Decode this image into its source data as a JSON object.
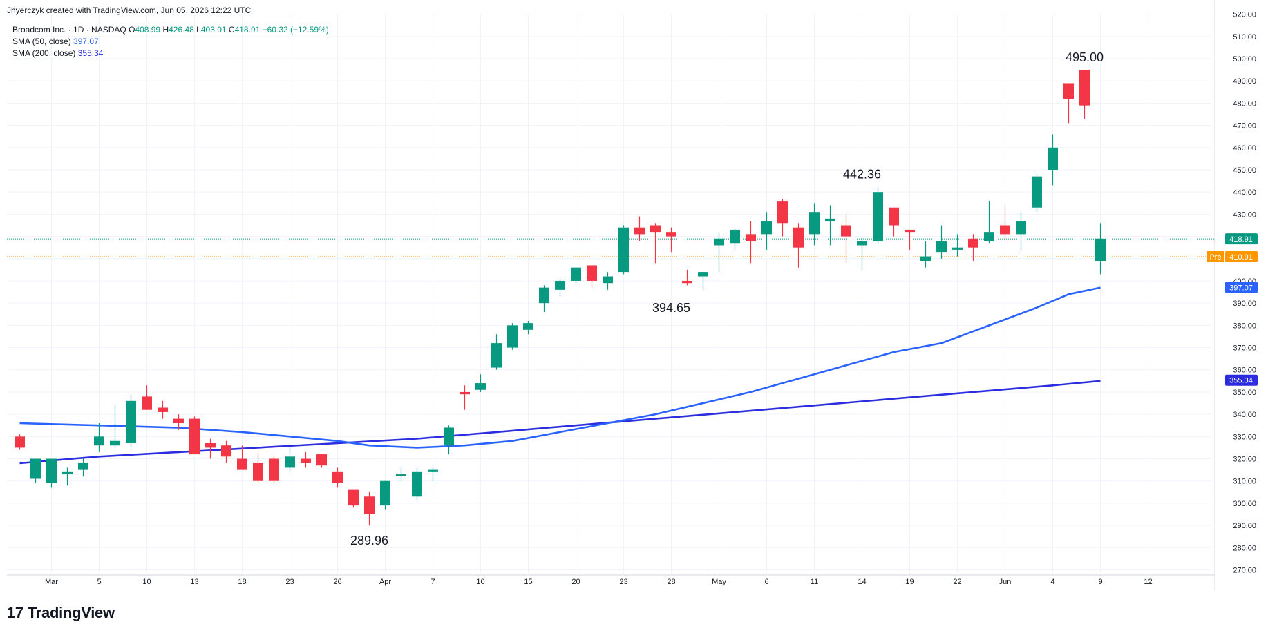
{
  "attribution": "Jhyerczyk created with TradingView.com, Jun 05, 2026 12:22 UTC",
  "legend": {
    "symbol": "Broadcom Inc. · 1D · NASDAQ",
    "o_label": "O",
    "o": "408.99",
    "h_label": "H",
    "h": "426.48",
    "l_label": "L",
    "l": "403.01",
    "c_label": "C",
    "c": "418.91",
    "change": "−60.32 (−12.59%)",
    "sma50_label": "SMA (50, close)",
    "sma50_value": "397.07",
    "sma200_label": "SMA (200, close)",
    "sma200_value": "355.34"
  },
  "logo": {
    "mark": "17",
    "text": "TradingView"
  },
  "colors": {
    "up": "#089981",
    "down": "#f23645",
    "sma50": "#2962ff",
    "sma200": "#2d2de0",
    "pre": "#ff9800"
  },
  "chart_data": {
    "type": "candlestick",
    "y_axis": {
      "ticks": [
        270,
        280,
        290,
        300,
        310,
        320,
        330,
        340,
        350,
        360,
        370,
        380,
        390,
        400,
        410,
        420,
        430,
        440,
        450,
        460,
        470,
        480,
        490,
        500,
        510,
        520
      ],
      "ylim": [
        268,
        521
      ]
    },
    "x_ticks": [
      {
        "label": "Mar",
        "i": 1
      },
      {
        "label": "5",
        "i": 4
      },
      {
        "label": "10",
        "i": 7
      },
      {
        "label": "13",
        "i": 10
      },
      {
        "label": "18",
        "i": 13
      },
      {
        "label": "23",
        "i": 16
      },
      {
        "label": "26",
        "i": 19
      },
      {
        "label": "Apr",
        "i": 22
      },
      {
        "label": "7",
        "i": 25
      },
      {
        "label": "10",
        "i": 28
      },
      {
        "label": "15",
        "i": 31
      },
      {
        "label": "20",
        "i": 34
      },
      {
        "label": "23",
        "i": 37
      },
      {
        "label": "28",
        "i": 40
      },
      {
        "label": "May",
        "i": 43
      },
      {
        "label": "6",
        "i": 46
      },
      {
        "label": "11",
        "i": 49
      },
      {
        "label": "14",
        "i": 52
      },
      {
        "label": "19",
        "i": 55
      },
      {
        "label": "22",
        "i": 58
      },
      {
        "label": "Jun",
        "i": 61
      },
      {
        "label": "4",
        "i": 64
      },
      {
        "label": "9",
        "i": 67
      },
      {
        "label": "12",
        "i": 70
      }
    ],
    "candles": [
      {
        "o": 330,
        "h": 331,
        "l": 324,
        "c": 325
      },
      {
        "o": 311,
        "h": 320,
        "l": 309,
        "c": 320
      },
      {
        "o": 309,
        "h": 320,
        "l": 307,
        "c": 320
      },
      {
        "o": 313,
        "h": 316,
        "l": 308,
        "c": 314
      },
      {
        "o": 315,
        "h": 320,
        "l": 312,
        "c": 318
      },
      {
        "o": 326,
        "h": 336,
        "l": 323,
        "c": 330
      },
      {
        "o": 326,
        "h": 344,
        "l": 325,
        "c": 328
      },
      {
        "o": 327,
        "h": 349,
        "l": 325,
        "c": 346
      },
      {
        "o": 348,
        "h": 353,
        "l": 342,
        "c": 342
      },
      {
        "o": 343,
        "h": 346,
        "l": 338,
        "c": 341
      },
      {
        "o": 338,
        "h": 340,
        "l": 333,
        "c": 336
      },
      {
        "o": 338,
        "h": 339,
        "l": 322,
        "c": 322
      },
      {
        "o": 327,
        "h": 329,
        "l": 320,
        "c": 325
      },
      {
        "o": 326,
        "h": 328,
        "l": 318,
        "c": 321
      },
      {
        "o": 320,
        "h": 326,
        "l": 316,
        "c": 315
      },
      {
        "o": 318,
        "h": 322,
        "l": 309,
        "c": 310
      },
      {
        "o": 320,
        "h": 321,
        "l": 309,
        "c": 310
      },
      {
        "o": 316,
        "h": 326,
        "l": 314,
        "c": 321
      },
      {
        "o": 320,
        "h": 323,
        "l": 316,
        "c": 318
      },
      {
        "o": 322,
        "h": 322,
        "l": 316,
        "c": 317
      },
      {
        "o": 314,
        "h": 316,
        "l": 307,
        "c": 309
      },
      {
        "o": 306,
        "h": 306,
        "l": 298,
        "c": 299
      },
      {
        "o": 303,
        "h": 305,
        "l": 290,
        "c": 295
      },
      {
        "o": 299,
        "h": 310,
        "l": 297,
        "c": 310
      },
      {
        "o": 313,
        "h": 316,
        "l": 310,
        "c": 313
      },
      {
        "o": 303,
        "h": 316,
        "l": 301,
        "c": 314
      },
      {
        "o": 314,
        "h": 316,
        "l": 310,
        "c": 315
      },
      {
        "o": 326,
        "h": 335,
        "l": 322,
        "c": 334
      },
      {
        "o": 350,
        "h": 353,
        "l": 342,
        "c": 349
      },
      {
        "o": 351,
        "h": 358,
        "l": 350,
        "c": 354
      },
      {
        "o": 361,
        "h": 376,
        "l": 360,
        "c": 372
      },
      {
        "o": 370,
        "h": 381,
        "l": 369,
        "c": 380
      },
      {
        "o": 378,
        "h": 382,
        "l": 376,
        "c": 381
      },
      {
        "o": 390,
        "h": 398,
        "l": 386,
        "c": 397
      },
      {
        "o": 396,
        "h": 401,
        "l": 393,
        "c": 400
      },
      {
        "o": 400,
        "h": 406,
        "l": 399,
        "c": 406
      },
      {
        "o": 407,
        "h": 407,
        "l": 397,
        "c": 400
      },
      {
        "o": 399,
        "h": 404,
        "l": 396,
        "c": 402
      },
      {
        "o": 404,
        "h": 425,
        "l": 403,
        "c": 424
      },
      {
        "o": 424,
        "h": 429,
        "l": 418,
        "c": 421
      },
      {
        "o": 425,
        "h": 426,
        "l": 408,
        "c": 422
      },
      {
        "o": 422,
        "h": 424,
        "l": 413,
        "c": 420
      },
      {
        "o": 400,
        "h": 405,
        "l": 398,
        "c": 399
      },
      {
        "o": 402,
        "h": 404,
        "l": 396,
        "c": 404
      },
      {
        "o": 416,
        "h": 422,
        "l": 404,
        "c": 419
      },
      {
        "o": 417,
        "h": 424,
        "l": 414,
        "c": 423
      },
      {
        "o": 421,
        "h": 427,
        "l": 408,
        "c": 418
      },
      {
        "o": 421,
        "h": 431,
        "l": 414,
        "c": 427
      },
      {
        "o": 436,
        "h": 437,
        "l": 420,
        "c": 426
      },
      {
        "o": 424,
        "h": 426,
        "l": 406,
        "c": 415
      },
      {
        "o": 421,
        "h": 435,
        "l": 416,
        "c": 431
      },
      {
        "o": 427,
        "h": 434,
        "l": 416,
        "c": 428
      },
      {
        "o": 425,
        "h": 430,
        "l": 408,
        "c": 420
      },
      {
        "o": 416,
        "h": 420,
        "l": 405,
        "c": 418
      },
      {
        "o": 418,
        "h": 442,
        "l": 417,
        "c": 440
      },
      {
        "o": 433,
        "h": 433,
        "l": 420,
        "c": 425
      },
      {
        "o": 423,
        "h": 423,
        "l": 414,
        "c": 422
      },
      {
        "o": 409,
        "h": 418,
        "l": 406,
        "c": 411
      },
      {
        "o": 413,
        "h": 425,
        "l": 410,
        "c": 418
      },
      {
        "o": 414,
        "h": 421,
        "l": 411,
        "c": 415
      },
      {
        "o": 419,
        "h": 421,
        "l": 409,
        "c": 415
      },
      {
        "o": 418,
        "h": 436,
        "l": 417,
        "c": 422
      },
      {
        "o": 425,
        "h": 434,
        "l": 418,
        "c": 421
      },
      {
        "o": 421,
        "h": 431,
        "l": 414,
        "c": 427
      },
      {
        "o": 433,
        "h": 448,
        "l": 431,
        "c": 447
      },
      {
        "o": 450,
        "h": 466,
        "l": 443,
        "c": 460
      },
      {
        "o": 489,
        "h": 489,
        "l": 471,
        "c": 482
      },
      {
        "o": 495,
        "h": 495,
        "l": 473,
        "c": 479
      },
      {
        "o": 409,
        "h": 426,
        "l": 403,
        "c": 419
      }
    ],
    "candle_index_offset": -1,
    "sma50": [
      [
        0,
        336
      ],
      [
        5,
        335
      ],
      [
        10,
        334
      ],
      [
        14,
        332
      ],
      [
        17,
        330
      ],
      [
        20,
        328
      ],
      [
        22,
        326
      ],
      [
        25,
        325
      ],
      [
        28,
        326
      ],
      [
        31,
        328
      ],
      [
        34,
        332
      ],
      [
        37,
        336
      ],
      [
        40,
        340
      ],
      [
        43,
        345
      ],
      [
        46,
        350
      ],
      [
        49,
        356
      ],
      [
        52,
        362
      ],
      [
        55,
        368
      ],
      [
        58,
        372
      ],
      [
        61,
        380
      ],
      [
        64,
        388
      ],
      [
        66,
        394
      ],
      [
        68,
        397
      ]
    ],
    "sma200": [
      [
        0,
        318
      ],
      [
        5,
        321
      ],
      [
        10,
        323
      ],
      [
        15,
        325
      ],
      [
        20,
        327
      ],
      [
        25,
        329
      ],
      [
        30,
        332
      ],
      [
        35,
        335
      ],
      [
        40,
        338
      ],
      [
        45,
        341
      ],
      [
        50,
        344
      ],
      [
        55,
        347
      ],
      [
        60,
        350
      ],
      [
        65,
        353
      ],
      [
        68,
        355
      ]
    ],
    "annotations": [
      {
        "text": "495.00",
        "i": 66,
        "y": 495
      },
      {
        "text": "442.36",
        "i": 52,
        "y": 442.36
      },
      {
        "text": "394.65",
        "i": 40,
        "y": 394.65
      },
      {
        "text": "289.96",
        "i": 21,
        "y": 289.96
      }
    ],
    "price_lines": {
      "last": {
        "value": 418.91,
        "label": "418.91"
      },
      "pre": {
        "value": 410.91,
        "label": "410.91",
        "tag": "Pre"
      },
      "sma50": {
        "value": 397.07,
        "label": "397.07"
      },
      "sma200": {
        "value": 355.34,
        "label": "355.34"
      }
    }
  }
}
